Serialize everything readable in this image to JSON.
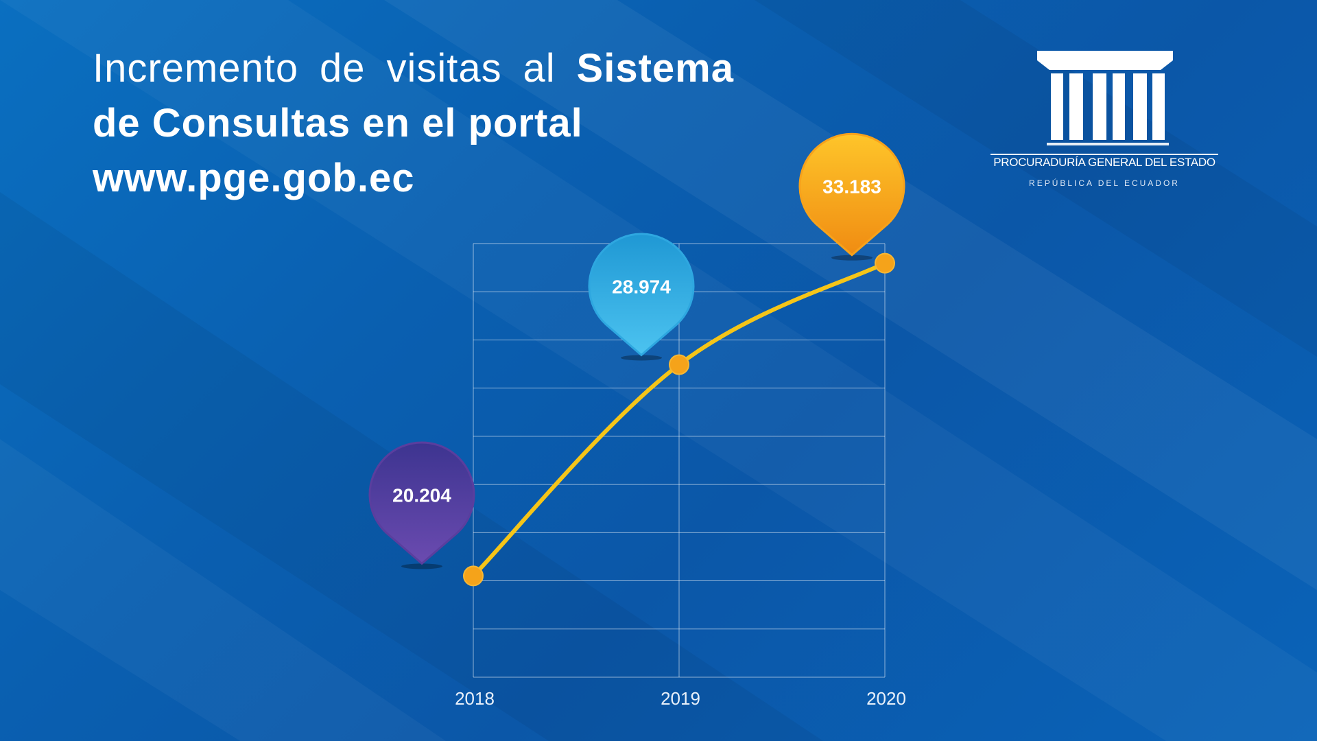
{
  "headline": {
    "line_regular": "Incremento de visitas al",
    "line_bold": "Sistema de Consultas en el portal",
    "url": "www.pge.gob.ec"
  },
  "logo": {
    "org_name": "PROCURADURÍA GENERAL DEL ESTADO",
    "country": "REPÚBLICA DEL ECUADOR",
    "icon": "columns-building-icon"
  },
  "chart_data": {
    "type": "line",
    "x": [
      "2018",
      "2019",
      "2020"
    ],
    "values": [
      20204,
      28974,
      33183
    ],
    "value_labels": [
      "20.204",
      "28.974",
      "33.183"
    ],
    "ylim": [
      16000,
      34000
    ],
    "grid": true,
    "line_color": "#f5c518",
    "marker_color": "#f5a31a",
    "bubble_colors": [
      "#5a3e9e",
      "#2ea7e0",
      "#f7a21b"
    ]
  }
}
